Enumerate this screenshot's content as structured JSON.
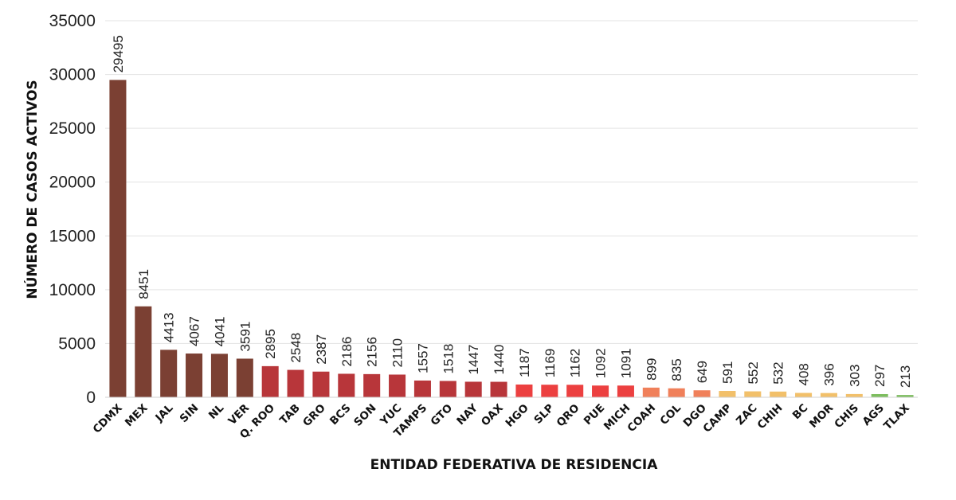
{
  "chart_data": {
    "type": "bar",
    "xlabel": "ENTIDAD FEDERATIVA DE RESIDENCIA",
    "ylabel": "NÚMERO DE CASOS ACTIVOS",
    "ylim": [
      0,
      35000
    ],
    "yticks": [
      "0",
      "5000",
      "10000",
      "15000",
      "20000",
      "25000",
      "30000",
      "35000"
    ],
    "grid": "horizontal",
    "categories": [
      "CDMX",
      "MEX",
      "JAL",
      "SIN",
      "NL",
      "VER",
      "Q. ROO",
      "TAB",
      "GRO",
      "BCS",
      "SON",
      "YUC",
      "TAMPS",
      "GTO",
      "NAY",
      "OAX",
      "HGO",
      "SLP",
      "QRO",
      "PUE",
      "MICH",
      "COAH",
      "COL",
      "DGO",
      "CAMP",
      "ZAC",
      "CHIH",
      "BC",
      "MOR",
      "CHIS",
      "AGS",
      "TLAX"
    ],
    "values": [
      29495,
      8451,
      4413,
      4067,
      4041,
      3591,
      2895,
      2548,
      2387,
      2186,
      2156,
      2110,
      1557,
      1518,
      1447,
      1440,
      1187,
      1169,
      1162,
      1092,
      1091,
      899,
      835,
      649,
      591,
      552,
      532,
      408,
      396,
      303,
      297,
      213
    ],
    "colors": [
      "#7b4033",
      "#7b4033",
      "#7b4033",
      "#7b4033",
      "#7b4033",
      "#7b4033",
      "#b8363a",
      "#b8363a",
      "#b8363a",
      "#b8363a",
      "#b8363a",
      "#b8363a",
      "#b8363a",
      "#b8363a",
      "#b8363a",
      "#b8363a",
      "#ec4040",
      "#ec4040",
      "#ec4040",
      "#ec4040",
      "#ec4040",
      "#f0805a",
      "#f0805a",
      "#f0805a",
      "#f2c06a",
      "#f2c06a",
      "#f2c06a",
      "#f2c06a",
      "#f2c06a",
      "#f2c06a",
      "#7cbd5e",
      "#7cbd5e"
    ]
  }
}
